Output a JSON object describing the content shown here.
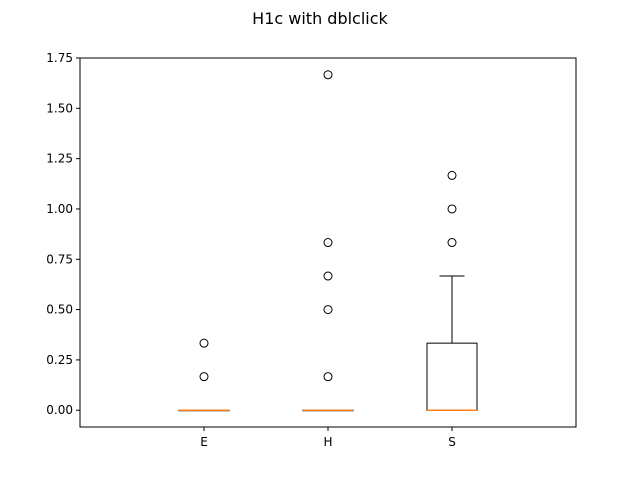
{
  "chart_data": {
    "type": "box",
    "title": "H1c with dblclick",
    "xlabel": "",
    "ylabel": "",
    "categories": [
      "E",
      "H",
      "S"
    ],
    "ylim": [
      -0.0833,
      1.75
    ],
    "yticks": [
      "0.00",
      "0.25",
      "0.50",
      "0.75",
      "1.00",
      "1.25",
      "1.50",
      "1.75"
    ],
    "ytick_values": [
      0,
      0.25,
      0.5,
      0.75,
      1.0,
      1.25,
      1.5,
      1.75
    ],
    "grid": false,
    "boxes": [
      {
        "category": "E",
        "whisker_low": 0,
        "q1": 0,
        "median": 0,
        "q3": 0,
        "whisker_high": 0,
        "fliers": [
          0.1667,
          0.3333
        ]
      },
      {
        "category": "H",
        "whisker_low": 0,
        "q1": 0,
        "median": 0,
        "q3": 0,
        "whisker_high": 0,
        "fliers": [
          0.1667,
          0.5,
          0.6667,
          0.8333,
          1.6667
        ]
      },
      {
        "category": "S",
        "whisker_low": 0,
        "q1": 0,
        "median": 0,
        "q3": 0.3333,
        "whisker_high": 0.6667,
        "fliers": [
          0.8333,
          1.0,
          1.1667
        ]
      }
    ],
    "colors": {
      "box": "#000000",
      "median": "#ff7f0e",
      "flier": "#000000",
      "axes": "#000000"
    }
  }
}
